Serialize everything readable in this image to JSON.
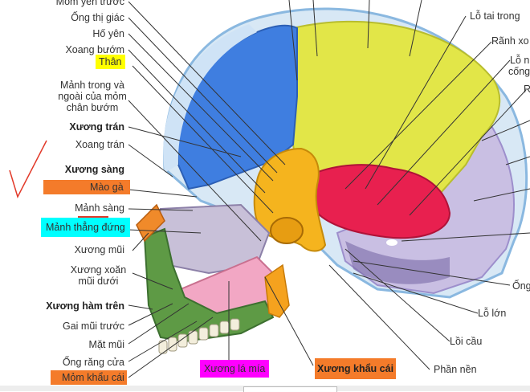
{
  "colors": {
    "frontal_blue": "#3f7ee0",
    "parietal_yellow": "#e2e648",
    "temporal_red": "#e8204f",
    "occipital_lavender": "#c9bfe3",
    "maxilla_green": "#5e9a45",
    "vomer_pink": "#f2a7c4",
    "sphenoid_orange": "#f5b41e",
    "highlight_yellow": "#ffff00",
    "highlight_orange": "#f47b2a",
    "highlight_cyan": "#00ffff",
    "highlight_magenta": "#ff00ff",
    "check_red": "#e23a2a"
  },
  "labels_left": [
    {
      "id": "mom-yen-truoc",
      "text": "Mỏm yên trước"
    },
    {
      "id": "ong-thi-giac",
      "text": "Ống thị giác"
    },
    {
      "id": "ho-yen",
      "text": "Hố yên"
    },
    {
      "id": "xoang-buom",
      "text": "Xoang bướm"
    },
    {
      "id": "than",
      "text": "Thân"
    },
    {
      "id": "manh-trong-ngoai-1",
      "text": "Mảnh trong và"
    },
    {
      "id": "manh-trong-ngoai-2",
      "text": "ngoài của mỏm"
    },
    {
      "id": "manh-trong-ngoai-3",
      "text": "chân bướm"
    },
    {
      "id": "xuong-tran",
      "text": "Xương trán"
    },
    {
      "id": "xoang-tran",
      "text": "Xoang trán"
    },
    {
      "id": "xuong-sang",
      "text": "Xương sàng"
    },
    {
      "id": "mao-ga",
      "text": "Mào gà"
    },
    {
      "id": "manh-sang",
      "text": "Mảnh sàng"
    },
    {
      "id": "manh-thang-dung",
      "text": "Mảnh thẳng đứng"
    },
    {
      "id": "xuong-mui",
      "text": "Xương mũi"
    },
    {
      "id": "xuong-xoan-1",
      "text": "Xương xoăn"
    },
    {
      "id": "xuong-xoan-2",
      "text": "mũi dưới"
    },
    {
      "id": "xuong-ham-tren",
      "text": "Xương hàm trên"
    },
    {
      "id": "gai-mui-truoc",
      "text": "Gai mũi trước"
    },
    {
      "id": "mat-mui",
      "text": "Mặt mũi"
    },
    {
      "id": "ong-rang-cua",
      "text": "Ống răng cửa"
    },
    {
      "id": "mom-khau-cai",
      "text": "Mỏm khẩu cái"
    }
  ],
  "labels_bottom": [
    {
      "id": "xuong-la-mia",
      "text": "Xương lá mía"
    },
    {
      "id": "xuong-khau-cai",
      "text": "Xương khẩu cái"
    },
    {
      "id": "phan-nen",
      "text": "Phần nền"
    }
  ],
  "labels_right": [
    {
      "id": "lo-tai-trong",
      "text": "Lỗ tai trong"
    },
    {
      "id": "ranh-xo",
      "text": "Rãnh xo"
    },
    {
      "id": "lo-n",
      "text": "Lỗ n"
    },
    {
      "id": "cong",
      "text": "cống"
    },
    {
      "id": "r",
      "text": "R"
    },
    {
      "id": "ong",
      "text": "Ống"
    },
    {
      "id": "lo-lon",
      "text": "Lỗ lớn"
    },
    {
      "id": "loi-cau",
      "text": "Lồi cầu"
    }
  ]
}
